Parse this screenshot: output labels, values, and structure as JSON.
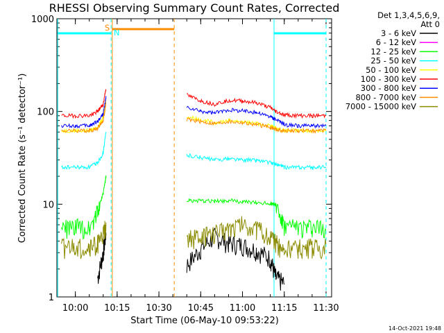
{
  "chart_data": {
    "type": "line",
    "title": "RHESSI Observing Summary Count Rates, Corrected",
    "xlabel": "Start Time (06-May-10 09:53:22)",
    "ylabel": "Corrected Count Rate (s⁻¹ detector⁻¹)",
    "yscale": "log",
    "ylim": [
      1,
      1000
    ],
    "xlim": [
      "09:53:22",
      "11:32:00"
    ],
    "x_ticks": [
      "10:00",
      "10:15",
      "10:30",
      "10:45",
      "11:00",
      "11:15",
      "11:30"
    ],
    "y_ticks": [
      "1",
      "10",
      "100",
      "1000"
    ],
    "legend_header": [
      "Det 1,3,4,5,6,9,",
      "Att 0"
    ],
    "legend_position": "right",
    "footer": "14-Oct-2021 19:48",
    "x": [
      "09:55",
      "10:00",
      "10:05",
      "10:08",
      "10:10",
      "10:11",
      "10:12",
      "10:37",
      "10:40",
      "10:45",
      "10:50",
      "10:55",
      "11:00",
      "11:05",
      "11:10",
      "11:12",
      "11:15",
      "11:20",
      "11:25",
      "11:30"
    ],
    "series": [
      {
        "name": "3 - 6 keV",
        "color": "#000000",
        "values": [
          null,
          null,
          null,
          1.6,
          3,
          5,
          null,
          null,
          2.2,
          3.3,
          4.5,
          3.8,
          3.6,
          3.2,
          2.6,
          1.6,
          1.4,
          null,
          null,
          null
        ]
      },
      {
        "name": "6 - 12 keV",
        "color": "#ff00ff",
        "values": [
          null,
          null,
          null,
          null,
          null,
          null,
          null,
          null,
          null,
          null,
          null,
          null,
          null,
          null,
          null,
          null,
          null,
          null,
          null,
          null
        ]
      },
      {
        "name": "12 - 25 keV",
        "color": "#00ff00",
        "values": [
          5.5,
          5.6,
          5.6,
          8.5,
          13,
          20,
          null,
          null,
          11,
          10.8,
          10.8,
          11,
          10.6,
          10.4,
          10.2,
          10,
          5.5,
          5.6,
          5.6,
          5.6
        ]
      },
      {
        "name": "25 - 50 keV",
        "color": "#00ffff",
        "values": [
          25,
          25,
          25,
          28,
          36,
          60,
          null,
          null,
          34,
          32,
          30,
          31,
          30,
          30,
          28,
          27,
          25,
          25,
          25,
          25
        ]
      },
      {
        "name": "50 - 100 keV",
        "color": "#ffff00",
        "values": [
          62,
          62,
          62,
          68,
          85,
          130,
          null,
          null,
          88,
          82,
          76,
          80,
          78,
          74,
          70,
          66,
          62,
          62,
          62,
          62
        ]
      },
      {
        "name": "100 - 300 keV",
        "color": "#ff0000",
        "values": [
          90,
          90,
          90,
          100,
          120,
          180,
          null,
          null,
          150,
          130,
          120,
          132,
          130,
          124,
          110,
          100,
          92,
          90,
          90,
          90
        ]
      },
      {
        "name": "300 - 800 keV",
        "color": "#0000ff",
        "values": [
          70,
          70,
          70,
          78,
          95,
          140,
          null,
          null,
          110,
          100,
          96,
          104,
          102,
          98,
          88,
          82,
          72,
          70,
          70,
          70
        ]
      },
      {
        "name": "800 - 7000 keV",
        "color": "#ff8c00",
        "values": [
          62,
          62,
          62,
          66,
          80,
          120,
          null,
          null,
          82,
          78,
          74,
          78,
          76,
          72,
          68,
          64,
          62,
          62,
          62,
          62
        ]
      },
      {
        "name": "7000 - 15000 keV",
        "color": "#8b8b00",
        "values": [
          3.4,
          3.4,
          3.4,
          3.8,
          4.6,
          6,
          null,
          null,
          4.2,
          4.4,
          4.8,
          5.6,
          6.2,
          5.4,
          4.4,
          3.8,
          3.2,
          3.4,
          3.4,
          3.4
        ]
      }
    ],
    "annotations": {
      "S": {
        "text": "S",
        "time": "10:13"
      },
      "N": {
        "text": "N",
        "time": "10:13"
      }
    }
  }
}
